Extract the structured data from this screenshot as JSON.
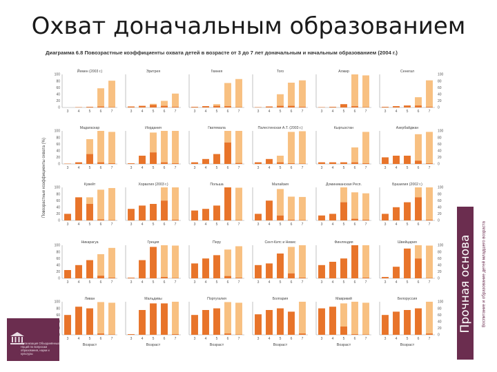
{
  "title": "Охват доначальным образованием",
  "caption": "Диаграмма 6.8 Повозрастные коэффициенты охвата детей в возрасте от 3 до 7 лет доначальным и начальным образованием (2004 г.)",
  "side_banner": "Прочная основа",
  "side_subtitle": "Воспитание и образование детей младшего возраста",
  "logo_text": "Организация Объединённых Наций по вопросам образования, науки и культуры",
  "colors": {
    "preprimary": "#e8742a",
    "primary": "#f8c081",
    "axis": "#999999",
    "banner": "#6b2d4f"
  },
  "chart_data": {
    "type": "bar",
    "categories": [
      "3",
      "4",
      "5",
      "6",
      "7"
    ],
    "ylabel": "Повозрастные коэффициенты охвата (%)",
    "xlabel": "Возраст",
    "ylim": [
      0,
      100
    ],
    "yticks": [
      "0",
      "20",
      "40",
      "60",
      "80",
      "100"
    ],
    "panels": [
      {
        "name": "Йемен (2003 г.)",
        "pre": [
          0,
          1,
          2,
          3,
          1
        ],
        "pri": [
          0,
          0,
          0,
          55,
          80
        ]
      },
      {
        "name": "Эритрея",
        "pre": [
          3,
          5,
          8,
          5,
          2
        ],
        "pri": [
          0,
          0,
          3,
          15,
          40
        ]
      },
      {
        "name": "Гвинея",
        "pre": [
          2,
          4,
          5,
          4,
          1
        ],
        "pri": [
          0,
          0,
          5,
          70,
          85
        ]
      },
      {
        "name": "Того",
        "pre": [
          1,
          3,
          5,
          5,
          2
        ],
        "pri": [
          0,
          0,
          35,
          70,
          80
        ]
      },
      {
        "name": "Алжир",
        "pre": [
          1,
          2,
          10,
          4,
          1
        ],
        "pri": [
          0,
          0,
          0,
          98,
          96
        ]
      },
      {
        "name": "Сенегал",
        "pre": [
          2,
          4,
          6,
          6,
          2
        ],
        "pri": [
          0,
          0,
          0,
          25,
          80
        ]
      },
      {
        "name": "Мадагаскар",
        "pre": [
          1,
          5,
          30,
          5,
          2
        ],
        "pri": [
          0,
          0,
          45,
          95,
          95
        ]
      },
      {
        "name": "Иордания",
        "pre": [
          2,
          25,
          35,
          5,
          2
        ],
        "pri": [
          0,
          0,
          60,
          95,
          100
        ]
      },
      {
        "name": "Гватемала",
        "pre": [
          5,
          15,
          30,
          65,
          3
        ],
        "pri": [
          0,
          0,
          0,
          85,
          100
        ]
      },
      {
        "name": "Палестинская А.Т. (2003 г.)",
        "pre": [
          5,
          15,
          5,
          2,
          1
        ],
        "pri": [
          0,
          0,
          20,
          95,
          98
        ]
      },
      {
        "name": "Кыргызстан",
        "pre": [
          5,
          5,
          5,
          5,
          2
        ],
        "pri": [
          0,
          0,
          0,
          45,
          95
        ]
      },
      {
        "name": "Азербайджан",
        "pre": [
          20,
          25,
          25,
          10,
          2
        ],
        "pri": [
          0,
          0,
          0,
          80,
          95
        ]
      },
      {
        "name": "Кувейт",
        "pre": [
          20,
          70,
          50,
          3,
          1
        ],
        "pri": [
          0,
          0,
          20,
          90,
          97
        ]
      },
      {
        "name": "Хорватия (2003 г.)",
        "pre": [
          35,
          45,
          50,
          60,
          2
        ],
        "pri": [
          0,
          0,
          0,
          90,
          98
        ]
      },
      {
        "name": "Польша",
        "pre": [
          30,
          35,
          45,
          100,
          1
        ],
        "pri": [
          0,
          0,
          0,
          0,
          98
        ]
      },
      {
        "name": "Малайзия",
        "pre": [
          20,
          60,
          15,
          2,
          1
        ],
        "pri": [
          0,
          0,
          80,
          70,
          70
        ]
      },
      {
        "name": "Доминиканская Респ.",
        "pre": [
          15,
          20,
          55,
          5,
          2
        ],
        "pri": [
          0,
          0,
          70,
          80,
          80
        ]
      },
      {
        "name": "Бразилия (2002 г.)",
        "pre": [
          20,
          40,
          55,
          70,
          2
        ],
        "pri": [
          0,
          0,
          0,
          90,
          98
        ]
      },
      {
        "name": "Никарагуа",
        "pre": [
          25,
          40,
          55,
          8,
          2
        ],
        "pri": [
          0,
          0,
          0,
          65,
          90
        ]
      },
      {
        "name": "Греция",
        "pre": [
          2,
          55,
          95,
          4,
          1
        ],
        "pri": [
          0,
          0,
          0,
          96,
          98
        ]
      },
      {
        "name": "Перу",
        "pre": [
          45,
          60,
          70,
          7,
          2
        ],
        "pri": [
          0,
          0,
          0,
          80,
          95
        ]
      },
      {
        "name": "Сент-Китс и Невис",
        "pre": [
          40,
          45,
          75,
          15,
          2
        ],
        "pri": [
          0,
          0,
          0,
          80,
          98
        ]
      },
      {
        "name": "Финляндия",
        "pre": [
          40,
          50,
          60,
          100,
          2
        ],
        "pri": [
          0,
          0,
          0,
          0,
          98
        ]
      },
      {
        "name": "Швейцария",
        "pre": [
          4,
          35,
          90,
          60,
          1
        ],
        "pri": [
          0,
          0,
          0,
          40,
          98
        ]
      },
      {
        "name": "Ливан",
        "pre": [
          60,
          85,
          80,
          4,
          1
        ],
        "pri": [
          0,
          0,
          0,
          95,
          96
        ]
      },
      {
        "name": "Мальдивы",
        "pre": [
          2,
          75,
          95,
          95,
          2
        ],
        "pri": [
          0,
          0,
          0,
          0,
          98
        ]
      },
      {
        "name": "Португалия",
        "pre": [
          60,
          75,
          80,
          4,
          1
        ],
        "pri": [
          0,
          0,
          0,
          95,
          96
        ]
      },
      {
        "name": "Болгария",
        "pre": [
          62,
          75,
          80,
          70,
          4
        ],
        "pri": [
          0,
          0,
          0,
          0,
          96
        ]
      },
      {
        "name": "Маврикий",
        "pre": [
          80,
          85,
          25,
          2,
          1
        ],
        "pri": [
          0,
          0,
          70,
          98,
          96
        ]
      },
      {
        "name": "Белоруссия",
        "pre": [
          60,
          70,
          75,
          80,
          4
        ],
        "pri": [
          0,
          0,
          0,
          0,
          96
        ]
      }
    ]
  }
}
